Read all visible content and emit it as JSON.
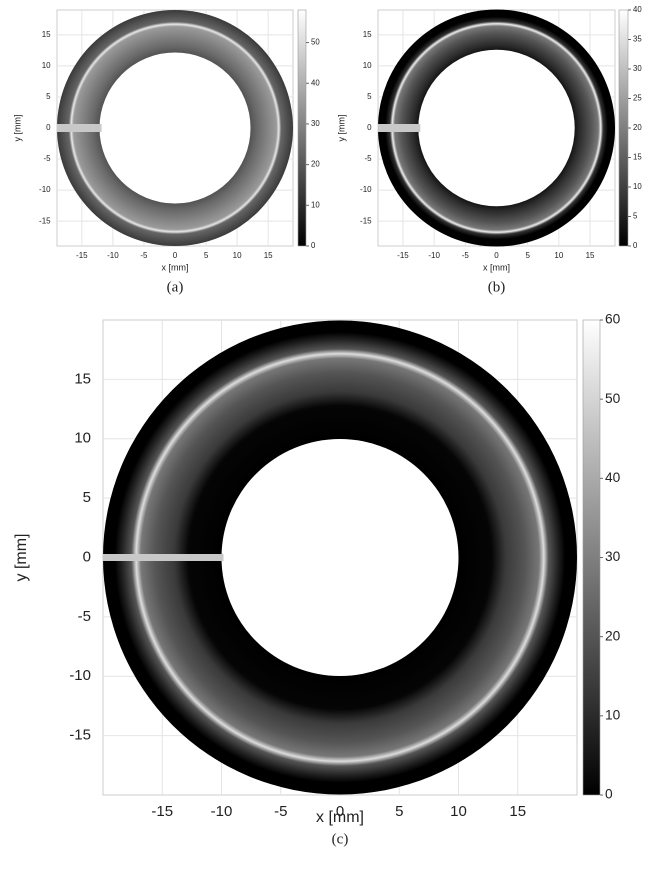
{
  "chart_data": [
    {
      "type": "image",
      "caption": "(a)",
      "xlabel": "x [mm]",
      "ylabel": "y [mm]",
      "xlim": [
        -19,
        19
      ],
      "ylim": [
        -19,
        19
      ],
      "xticks": [
        -15,
        -10,
        -5,
        0,
        5,
        10,
        15
      ],
      "yticks": [
        15,
        10,
        5,
        0,
        -5,
        -10,
        -15
      ],
      "clim": [
        0,
        58
      ],
      "cticks": [
        0,
        10,
        20,
        30,
        40,
        50
      ],
      "grid": true
    },
    {
      "type": "image",
      "caption": "(b)",
      "xlabel": "x [mm]",
      "ylabel": "y [mm]",
      "xlim": [
        -19,
        19
      ],
      "ylim": [
        -19,
        19
      ],
      "xticks": [
        -15,
        -10,
        -5,
        0,
        5,
        10,
        15
      ],
      "yticks": [
        15,
        10,
        5,
        0,
        -5,
        -10,
        -15
      ],
      "clim": [
        0,
        40
      ],
      "cticks": [
        0,
        5,
        10,
        15,
        20,
        25,
        30,
        35,
        40
      ],
      "grid": true
    },
    {
      "type": "image",
      "caption": "(c)",
      "xlabel": "x [mm]",
      "ylabel": "y [mm]",
      "xlim": [
        -20,
        20
      ],
      "ylim": [
        -20,
        20
      ],
      "xticks": [
        -15,
        -10,
        -5,
        0,
        5,
        10,
        15
      ],
      "yticks": [
        15,
        10,
        5,
        0,
        -5,
        -10,
        -15
      ],
      "clim": [
        0,
        60
      ],
      "cticks": [
        0,
        10,
        20,
        30,
        40,
        50,
        60
      ],
      "grid": true
    }
  ]
}
